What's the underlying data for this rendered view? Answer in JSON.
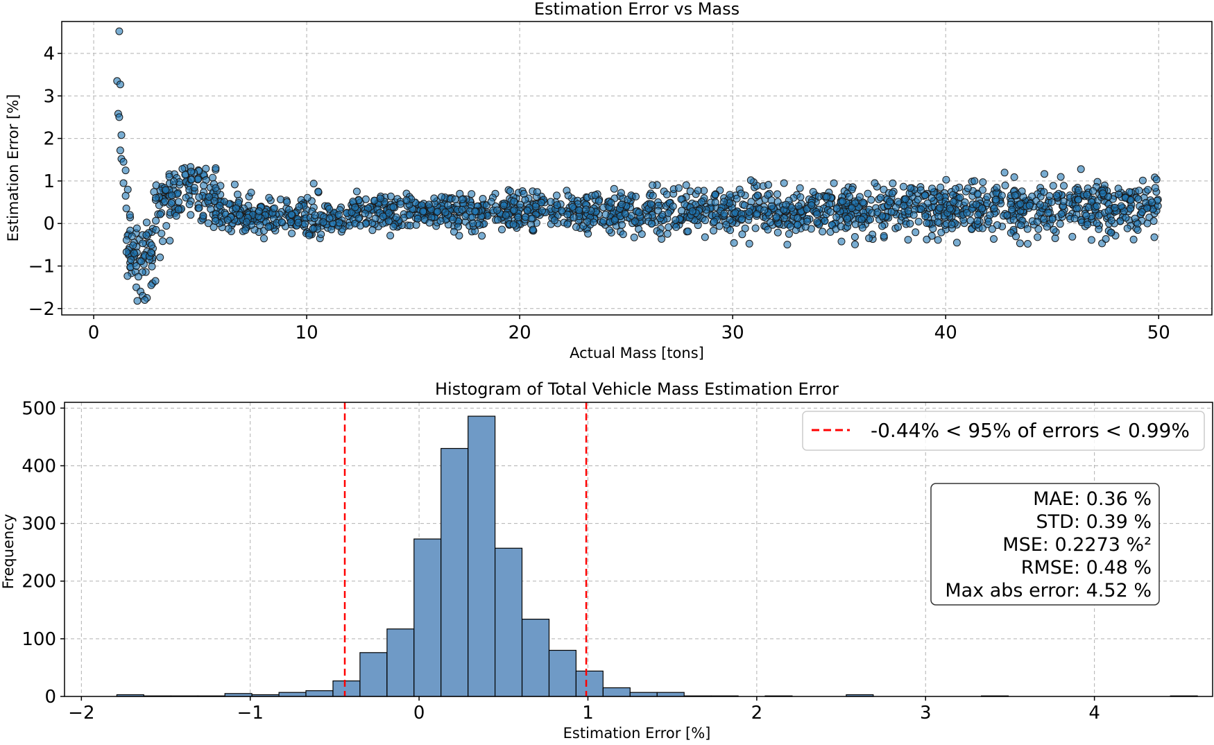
{
  "chart_data": [
    {
      "type": "scatter",
      "title": "Estimation Error vs Mass",
      "xlabel": "Actual Mass [tons]",
      "ylabel": "Estimation Error [%]",
      "xlim": [
        -1.5,
        52.5
      ],
      "ylim": [
        -2.15,
        4.75
      ],
      "xticks": [
        0,
        10,
        20,
        30,
        40,
        50
      ],
      "yticks": [
        -2,
        -1,
        0,
        1,
        2,
        3,
        4
      ],
      "grid": true,
      "marker_color": "#1f77b4",
      "highlighted_points": [
        {
          "x": 1.2,
          "y": 4.52
        },
        {
          "x": 1.1,
          "y": 3.35
        },
        {
          "x": 1.25,
          "y": 3.27
        },
        {
          "x": 1.15,
          "y": 2.58
        },
        {
          "x": 1.2,
          "y": 2.5
        },
        {
          "x": 1.3,
          "y": 2.08
        },
        {
          "x": 1.25,
          "y": 1.72
        },
        {
          "x": 1.3,
          "y": 1.52
        },
        {
          "x": 1.4,
          "y": 1.45
        },
        {
          "x": 1.5,
          "y": 1.25
        },
        {
          "x": 1.4,
          "y": 0.95
        },
        {
          "x": 1.6,
          "y": 0.8
        },
        {
          "x": 1.5,
          "y": 0.65
        },
        {
          "x": 1.7,
          "y": 0.2
        },
        {
          "x": 1.8,
          "y": -0.3
        },
        {
          "x": 1.9,
          "y": -0.7
        },
        {
          "x": 2.0,
          "y": -1.0
        },
        {
          "x": 2.1,
          "y": -1.25
        },
        {
          "x": 2.0,
          "y": -1.5
        },
        {
          "x": 2.2,
          "y": -1.6
        },
        {
          "x": 2.3,
          "y": -1.7
        },
        {
          "x": 2.5,
          "y": -1.75
        },
        {
          "x": 2.4,
          "y": -1.8
        },
        {
          "x": 2.7,
          "y": -1.45
        },
        {
          "x": 2.9,
          "y": -1.35
        }
      ],
      "n_points_estimate": 2000
    },
    {
      "type": "bar",
      "title": "Histogram of Total Vehicle Mass Estimation Error",
      "xlabel": "Estimation Error [%]",
      "ylabel": "Frequency",
      "xlim": [
        -2.1,
        4.7
      ],
      "ylim": [
        0,
        510
      ],
      "xticks": [
        -2,
        -1,
        0,
        1,
        2,
        3,
        4
      ],
      "yticks": [
        0,
        100,
        200,
        300,
        400,
        500
      ],
      "grid": true,
      "bar_color": "#6f9ac6",
      "bin_edges": [
        -1.79,
        -1.63,
        -1.47,
        -1.31,
        -1.15,
        -0.99,
        -0.83,
        -0.67,
        -0.51,
        -0.35,
        -0.19,
        -0.03,
        0.13,
        0.29,
        0.45,
        0.61,
        0.77,
        0.93,
        1.09,
        1.25,
        1.41,
        1.57,
        1.73,
        1.89,
        2.05,
        2.21,
        2.37,
        2.53,
        2.69,
        2.85,
        3.01,
        3.17,
        3.33,
        3.49,
        3.65,
        3.81,
        3.97,
        4.13,
        4.29,
        4.45,
        4.61
      ],
      "counts": [
        3,
        1,
        1,
        1,
        5,
        3,
        7,
        10,
        27,
        76,
        117,
        273,
        430,
        486,
        257,
        134,
        80,
        44,
        15,
        7,
        7,
        1,
        1,
        0,
        1,
        0,
        0,
        3,
        0,
        0,
        0,
        0,
        1,
        0,
        0,
        0,
        0,
        0,
        0,
        1
      ],
      "vlines": [
        {
          "x": -0.44,
          "color": "#ff0000",
          "style": "dashed"
        },
        {
          "x": 0.99,
          "color": "#ff0000",
          "style": "dashed"
        }
      ],
      "legend": {
        "label": "-0.44% < 95% of errors < 0.99%",
        "position": "upper right"
      },
      "stats_box": [
        "MAE: 0.36 %",
        "STD: 0.39 %",
        "MSE: 0.2273 %²",
        "RMSE: 0.48 %",
        "Max abs error: 4.52 %"
      ]
    }
  ]
}
